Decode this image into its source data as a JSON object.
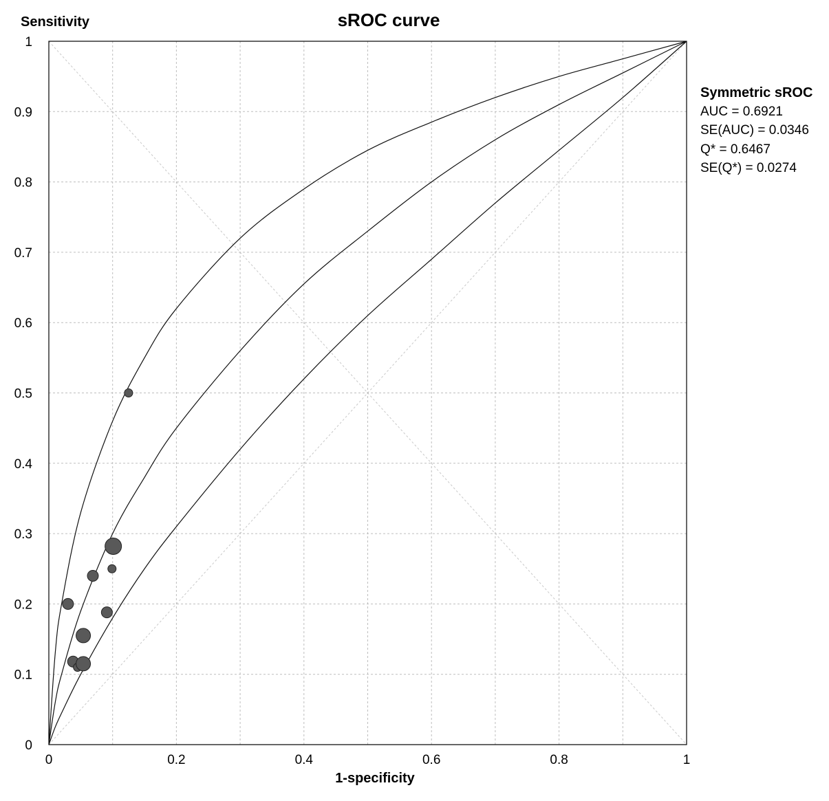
{
  "chart_data": {
    "type": "scatter",
    "title": "sROC curve",
    "xlabel": "1-specificity",
    "ylabel": "Sensitivity",
    "xlim": [
      0,
      1
    ],
    "ylim": [
      0,
      1
    ],
    "x_ticks": [
      "0",
      "0.2",
      "0.4",
      "0.6",
      "0.8",
      "1"
    ],
    "y_ticks": [
      "0",
      "0.1",
      "0.2",
      "0.3",
      "0.4",
      "0.5",
      "0.6",
      "0.7",
      "0.8",
      "0.9",
      "1"
    ],
    "grid": true,
    "curves": [
      {
        "name": "upper",
        "x": [
          0,
          0.01,
          0.02,
          0.05,
          0.1,
          0.15,
          0.2,
          0.3,
          0.4,
          0.5,
          0.6,
          0.7,
          0.8,
          0.9,
          1
        ],
        "y": [
          0,
          0.13,
          0.2,
          0.33,
          0.46,
          0.55,
          0.62,
          0.72,
          0.79,
          0.845,
          0.885,
          0.92,
          0.95,
          0.975,
          1
        ]
      },
      {
        "name": "middle",
        "x": [
          0,
          0.01,
          0.02,
          0.05,
          0.1,
          0.15,
          0.2,
          0.3,
          0.4,
          0.5,
          0.6,
          0.7,
          0.8,
          0.9,
          1
        ],
        "y": [
          0,
          0.06,
          0.1,
          0.19,
          0.3,
          0.38,
          0.45,
          0.56,
          0.655,
          0.73,
          0.8,
          0.86,
          0.91,
          0.955,
          1
        ]
      },
      {
        "name": "lower",
        "x": [
          0,
          0.01,
          0.02,
          0.05,
          0.1,
          0.15,
          0.2,
          0.3,
          0.4,
          0.5,
          0.6,
          0.7,
          0.8,
          0.9,
          1
        ],
        "y": [
          0,
          0.025,
          0.045,
          0.1,
          0.18,
          0.25,
          0.31,
          0.42,
          0.52,
          0.61,
          0.69,
          0.77,
          0.845,
          0.92,
          1
        ]
      }
    ],
    "points": [
      {
        "x": 0.03,
        "y": 0.2,
        "size": 2
      },
      {
        "x": 0.038,
        "y": 0.118,
        "size": 2
      },
      {
        "x": 0.045,
        "y": 0.11,
        "size": 1
      },
      {
        "x": 0.054,
        "y": 0.155,
        "size": 3
      },
      {
        "x": 0.054,
        "y": 0.115,
        "size": 3
      },
      {
        "x": 0.069,
        "y": 0.24,
        "size": 2
      },
      {
        "x": 0.091,
        "y": 0.188,
        "size": 2
      },
      {
        "x": 0.099,
        "y": 0.25,
        "size": 1
      },
      {
        "x": 0.101,
        "y": 0.282,
        "size": 4
      },
      {
        "x": 0.125,
        "y": 0.5,
        "size": 1
      }
    ]
  },
  "stats": {
    "heading": "Symmetric sROC",
    "lines": [
      "AUC = 0.6921",
      "SE(AUC) = 0.0346",
      "Q* = 0.6467",
      "SE(Q*) = 0.0274"
    ]
  }
}
